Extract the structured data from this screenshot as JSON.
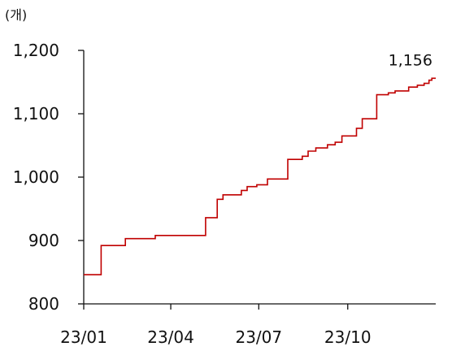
{
  "chart_data": {
    "type": "line",
    "title": "",
    "unit_label": "(개)",
    "xlabel": "",
    "ylabel": "",
    "ylim": [
      800,
      1200
    ],
    "yticks": [
      800,
      900,
      1000,
      1100,
      1200
    ],
    "ytick_labels": [
      "800",
      "900",
      "1,000",
      "1,100",
      "1,200"
    ],
    "xticks": [
      "2023-01-01",
      "2023-04-01",
      "2023-07-01",
      "2023-10-01"
    ],
    "xtick_labels": [
      "23/01",
      "23/04",
      "23/07",
      "23/10"
    ],
    "xlim": [
      "2023-01-01",
      "2023-12-31"
    ],
    "line_style": "step",
    "grid": false,
    "legend": false,
    "series": [
      {
        "color": "#c00000",
        "points": [
          [
            "2023-01-01",
            846
          ],
          [
            "2023-01-19",
            892
          ],
          [
            "2023-02-13",
            903
          ],
          [
            "2023-03-16",
            908
          ],
          [
            "2023-05-07",
            936
          ],
          [
            "2023-05-19",
            965
          ],
          [
            "2023-05-25",
            972
          ],
          [
            "2023-06-13",
            979
          ],
          [
            "2023-06-19",
            985
          ],
          [
            "2023-06-29",
            988
          ],
          [
            "2023-07-10",
            997
          ],
          [
            "2023-07-31",
            1028
          ],
          [
            "2023-08-15",
            1033
          ],
          [
            "2023-08-21",
            1041
          ],
          [
            "2023-08-29",
            1046
          ],
          [
            "2023-09-10",
            1051
          ],
          [
            "2023-09-18",
            1055
          ],
          [
            "2023-09-25",
            1065
          ],
          [
            "2023-10-10",
            1077
          ],
          [
            "2023-10-16",
            1092
          ],
          [
            "2023-10-31",
            1130
          ],
          [
            "2023-11-12",
            1133
          ],
          [
            "2023-11-19",
            1136
          ],
          [
            "2023-12-03",
            1142
          ],
          [
            "2023-12-12",
            1145
          ],
          [
            "2023-12-19",
            1148
          ],
          [
            "2023-12-24",
            1153
          ],
          [
            "2023-12-27",
            1156
          ],
          [
            "2023-12-31",
            1156
          ]
        ]
      }
    ],
    "annotations": [
      {
        "text": "1,156",
        "x": "2023-12-31",
        "y": 1156
      }
    ]
  }
}
